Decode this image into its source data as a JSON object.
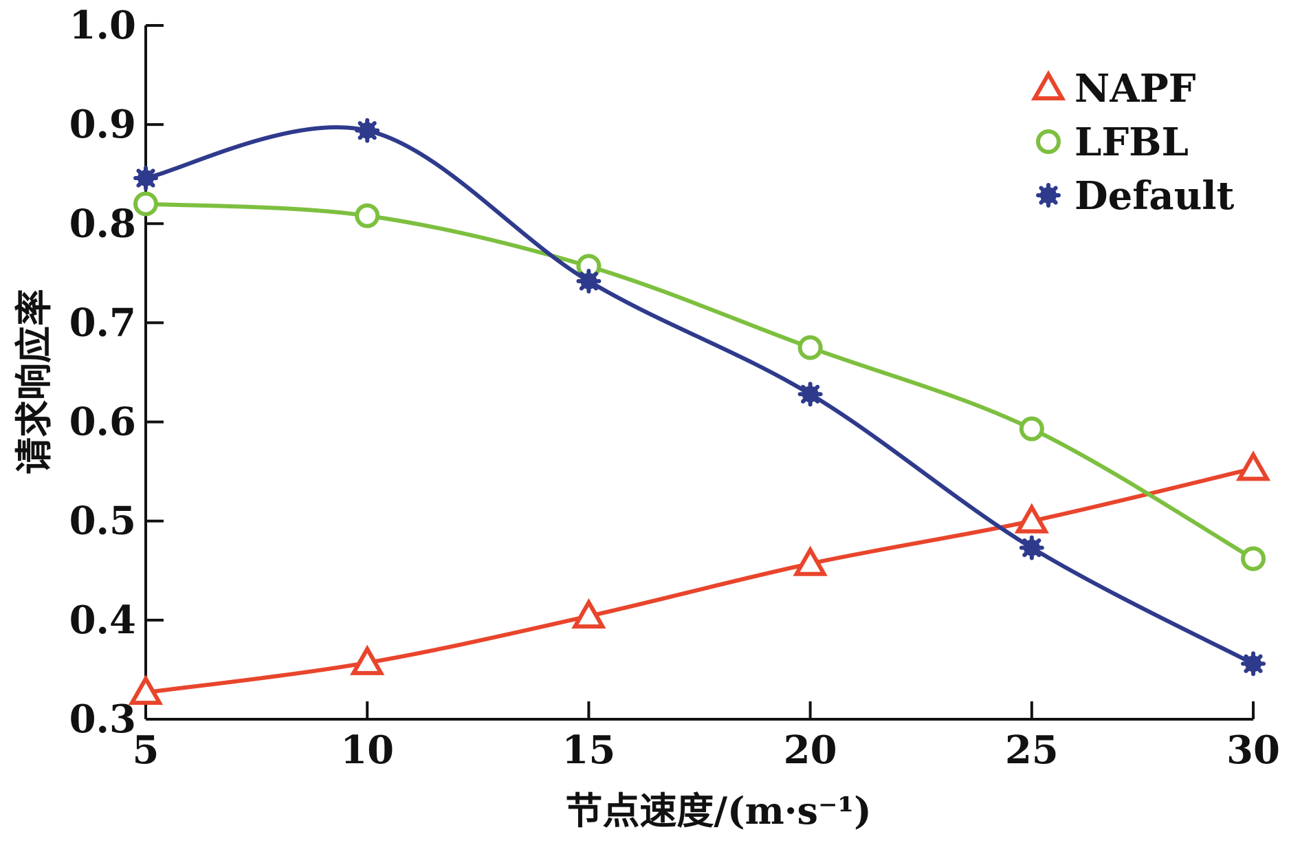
{
  "chart_data": {
    "type": "line",
    "xlabel": "节点速度/(m·s⁻¹)",
    "ylabel": "请求响应率",
    "xlim": [
      5,
      30
    ],
    "ylim": [
      0.3,
      1.0
    ],
    "x_ticks": [
      "5",
      "10",
      "15",
      "20",
      "25",
      "30"
    ],
    "y_ticks": [
      "0.3",
      "0.4",
      "0.5",
      "0.6",
      "0.7",
      "0.8",
      "0.9",
      "1.0"
    ],
    "grid": false,
    "legend_position": "top-right",
    "x": [
      5,
      10,
      15,
      20,
      25,
      30
    ],
    "series": [
      {
        "name": "NAPF",
        "marker": "triangle",
        "color": "#e8452c",
        "values": [
          0.327,
          0.357,
          0.404,
          0.457,
          0.5,
          0.553
        ]
      },
      {
        "name": "LFBL",
        "marker": "circle",
        "color": "#7dbf3f",
        "values": [
          0.82,
          0.808,
          0.757,
          0.675,
          0.593,
          0.462
        ]
      },
      {
        "name": "Default",
        "marker": "star",
        "color": "#2e3a8c",
        "values": [
          0.846,
          0.894,
          0.742,
          0.628,
          0.473,
          0.356
        ]
      }
    ]
  }
}
